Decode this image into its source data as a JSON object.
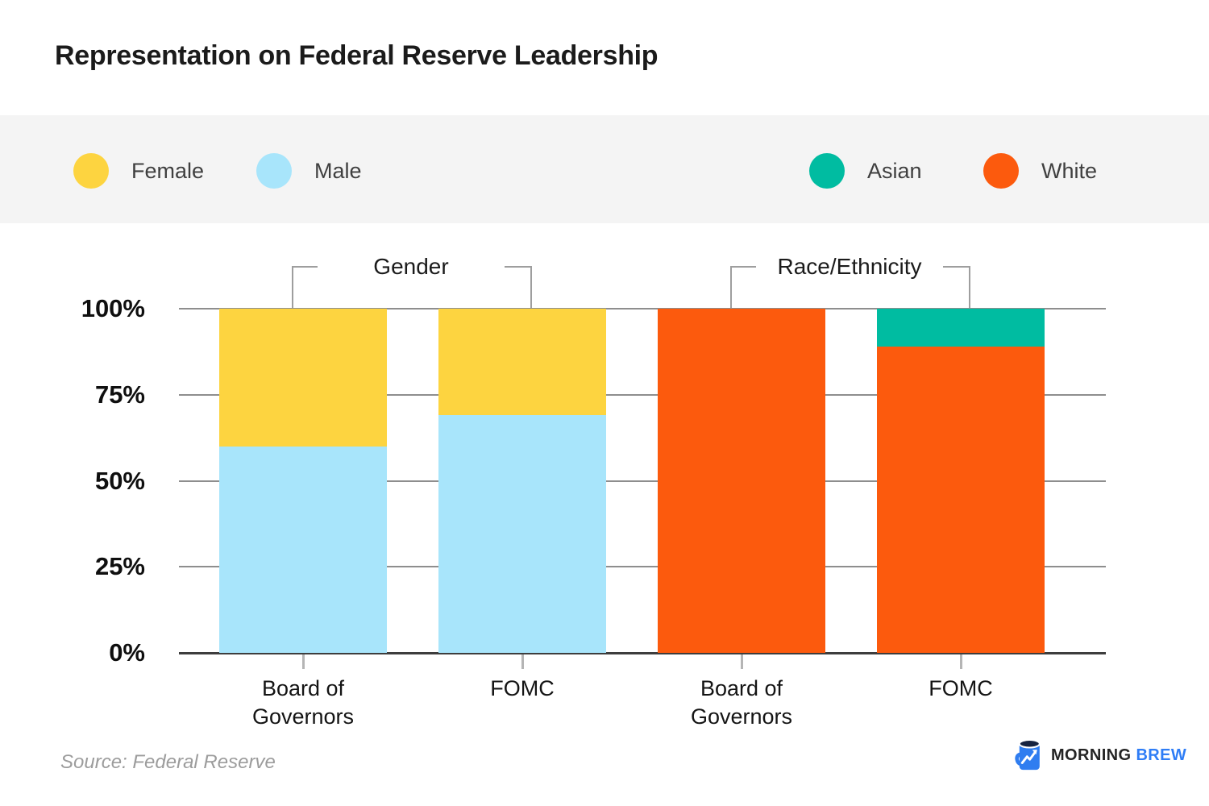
{
  "title": "Representation on Federal Reserve Leadership",
  "legend": {
    "left_items": [
      {
        "label": "Female",
        "color": "#FDD440"
      },
      {
        "label": "Male",
        "color": "#A8E5FB"
      }
    ],
    "right_items": [
      {
        "label": "Asian",
        "color": "#00BCA1"
      },
      {
        "label": "White",
        "color": "#FC5A0D"
      }
    ]
  },
  "chart_data": {
    "type": "bar",
    "stacked": true,
    "units": "percent",
    "title": "Representation on Federal Reserve Leadership",
    "grid": true,
    "legend_position": "top",
    "ylim": [
      0,
      100
    ],
    "yticks": [
      {
        "value": 0,
        "label": "0%"
      },
      {
        "value": 25,
        "label": "25%"
      },
      {
        "value": 50,
        "label": "50%"
      },
      {
        "value": 75,
        "label": "75%"
      },
      {
        "value": 100,
        "label": "100%"
      }
    ],
    "series": [
      {
        "name": "Female",
        "color": "#FDD440"
      },
      {
        "name": "Male",
        "color": "#A8E5FB"
      },
      {
        "name": "Asian",
        "color": "#00BCA1"
      },
      {
        "name": "White",
        "color": "#FC5A0D"
      }
    ],
    "groups": [
      {
        "label": "Gender",
        "bars": [
          {
            "category": "Board of Governors",
            "segments": [
              {
                "series": "Male",
                "value": 60
              },
              {
                "series": "Female",
                "value": 40
              }
            ]
          },
          {
            "category": "FOMC",
            "segments": [
              {
                "series": "Male",
                "value": 69
              },
              {
                "series": "Female",
                "value": 31
              }
            ]
          }
        ]
      },
      {
        "label": "Race/Ethnicity",
        "bars": [
          {
            "category": "Board of Governors",
            "segments": [
              {
                "series": "White",
                "value": 100
              }
            ]
          },
          {
            "category": "FOMC",
            "segments": [
              {
                "series": "White",
                "value": 89
              },
              {
                "series": "Asian",
                "value": 11
              }
            ]
          }
        ]
      }
    ]
  },
  "source": "Source: Federal Reserve",
  "logo": {
    "text_primary": "MORNING",
    "text_secondary": "BREW",
    "brand_color": "#2E7DF6",
    "icon": "mug-chart-icon"
  }
}
